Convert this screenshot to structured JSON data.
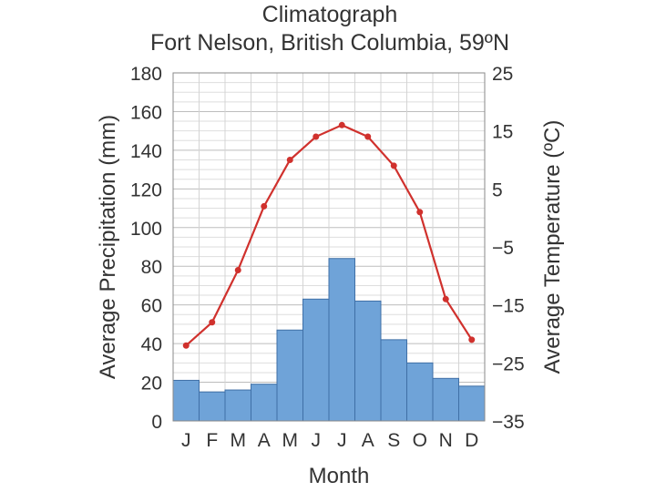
{
  "chart_data": {
    "type": "bar",
    "title": "Climatograph",
    "subtitle": "Fort Nelson, British Columbia, 59ºN",
    "xlabel": "Month",
    "ylabel": "Average Precipitation (mm)",
    "y2label": "Average Temperature (ºC)",
    "categories": [
      "J",
      "F",
      "M",
      "A",
      "M",
      "J",
      "J",
      "A",
      "S",
      "O",
      "N",
      "D"
    ],
    "ylim": [
      0,
      180
    ],
    "y_ticks": [
      "0",
      "20",
      "40",
      "60",
      "80",
      "100",
      "120",
      "140",
      "160",
      "180"
    ],
    "y2lim": [
      -35,
      25
    ],
    "y2_ticks": [
      "25",
      "15",
      "5",
      "−5",
      "−15",
      "−25",
      "−35"
    ],
    "grid": true,
    "series": [
      {
        "name": "Average Precipitation",
        "axis": "left",
        "kind": "bar",
        "color": "#6fa3d8",
        "values": [
          21,
          15,
          16,
          19,
          47,
          63,
          84,
          62,
          42,
          30,
          22,
          18
        ]
      },
      {
        "name": "Average Temperature",
        "axis": "right",
        "kind": "line",
        "color": "#d0312d",
        "values": [
          -22,
          -18,
          -9,
          2,
          10,
          14,
          16,
          14,
          9,
          1,
          -14,
          -21
        ]
      }
    ]
  }
}
